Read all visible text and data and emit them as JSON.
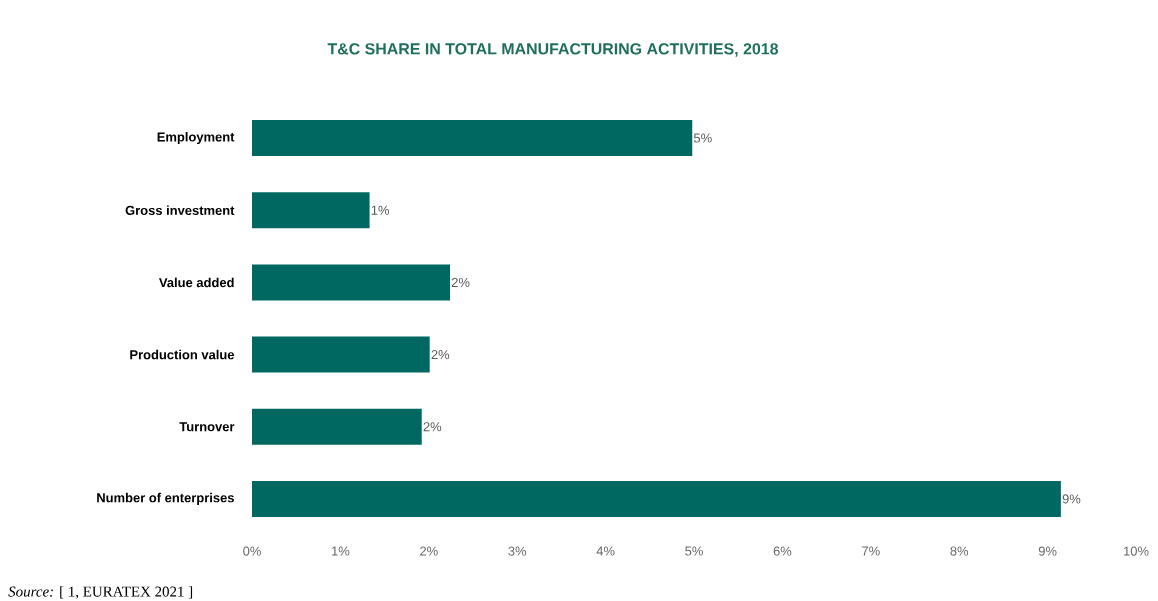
{
  "chart_data": {
    "type": "bar",
    "orientation": "horizontal",
    "title": "T&C SHARE IN TOTAL MANUFACTURING ACTIVITIES, 2018",
    "categories": [
      "Employment",
      "Gross investment",
      "Value added",
      "Production value",
      "Turnover",
      "Number of enterprises"
    ],
    "values": [
      4.98,
      1.33,
      2.24,
      2.01,
      1.92,
      9.15
    ],
    "value_labels": [
      "5%",
      "1%",
      "2%",
      "2%",
      "2%",
      "9%"
    ],
    "color": "#006861",
    "xlim": [
      0,
      10
    ],
    "xticks": [
      {
        "value": 0,
        "label": "0%"
      },
      {
        "value": 1,
        "label": "1%"
      },
      {
        "value": 2,
        "label": "2%"
      },
      {
        "value": 3,
        "label": "3%"
      },
      {
        "value": 4,
        "label": "4%"
      },
      {
        "value": 5,
        "label": "5%"
      },
      {
        "value": 6,
        "label": "6%"
      },
      {
        "value": 7,
        "label": "7%"
      },
      {
        "value": 8,
        "label": "8%"
      },
      {
        "value": 9,
        "label": "9%"
      },
      {
        "value": 10,
        "label": "10%"
      }
    ],
    "annotations": [
      "*Source:* [ 1, EURATEX 2021 ]"
    ]
  }
}
